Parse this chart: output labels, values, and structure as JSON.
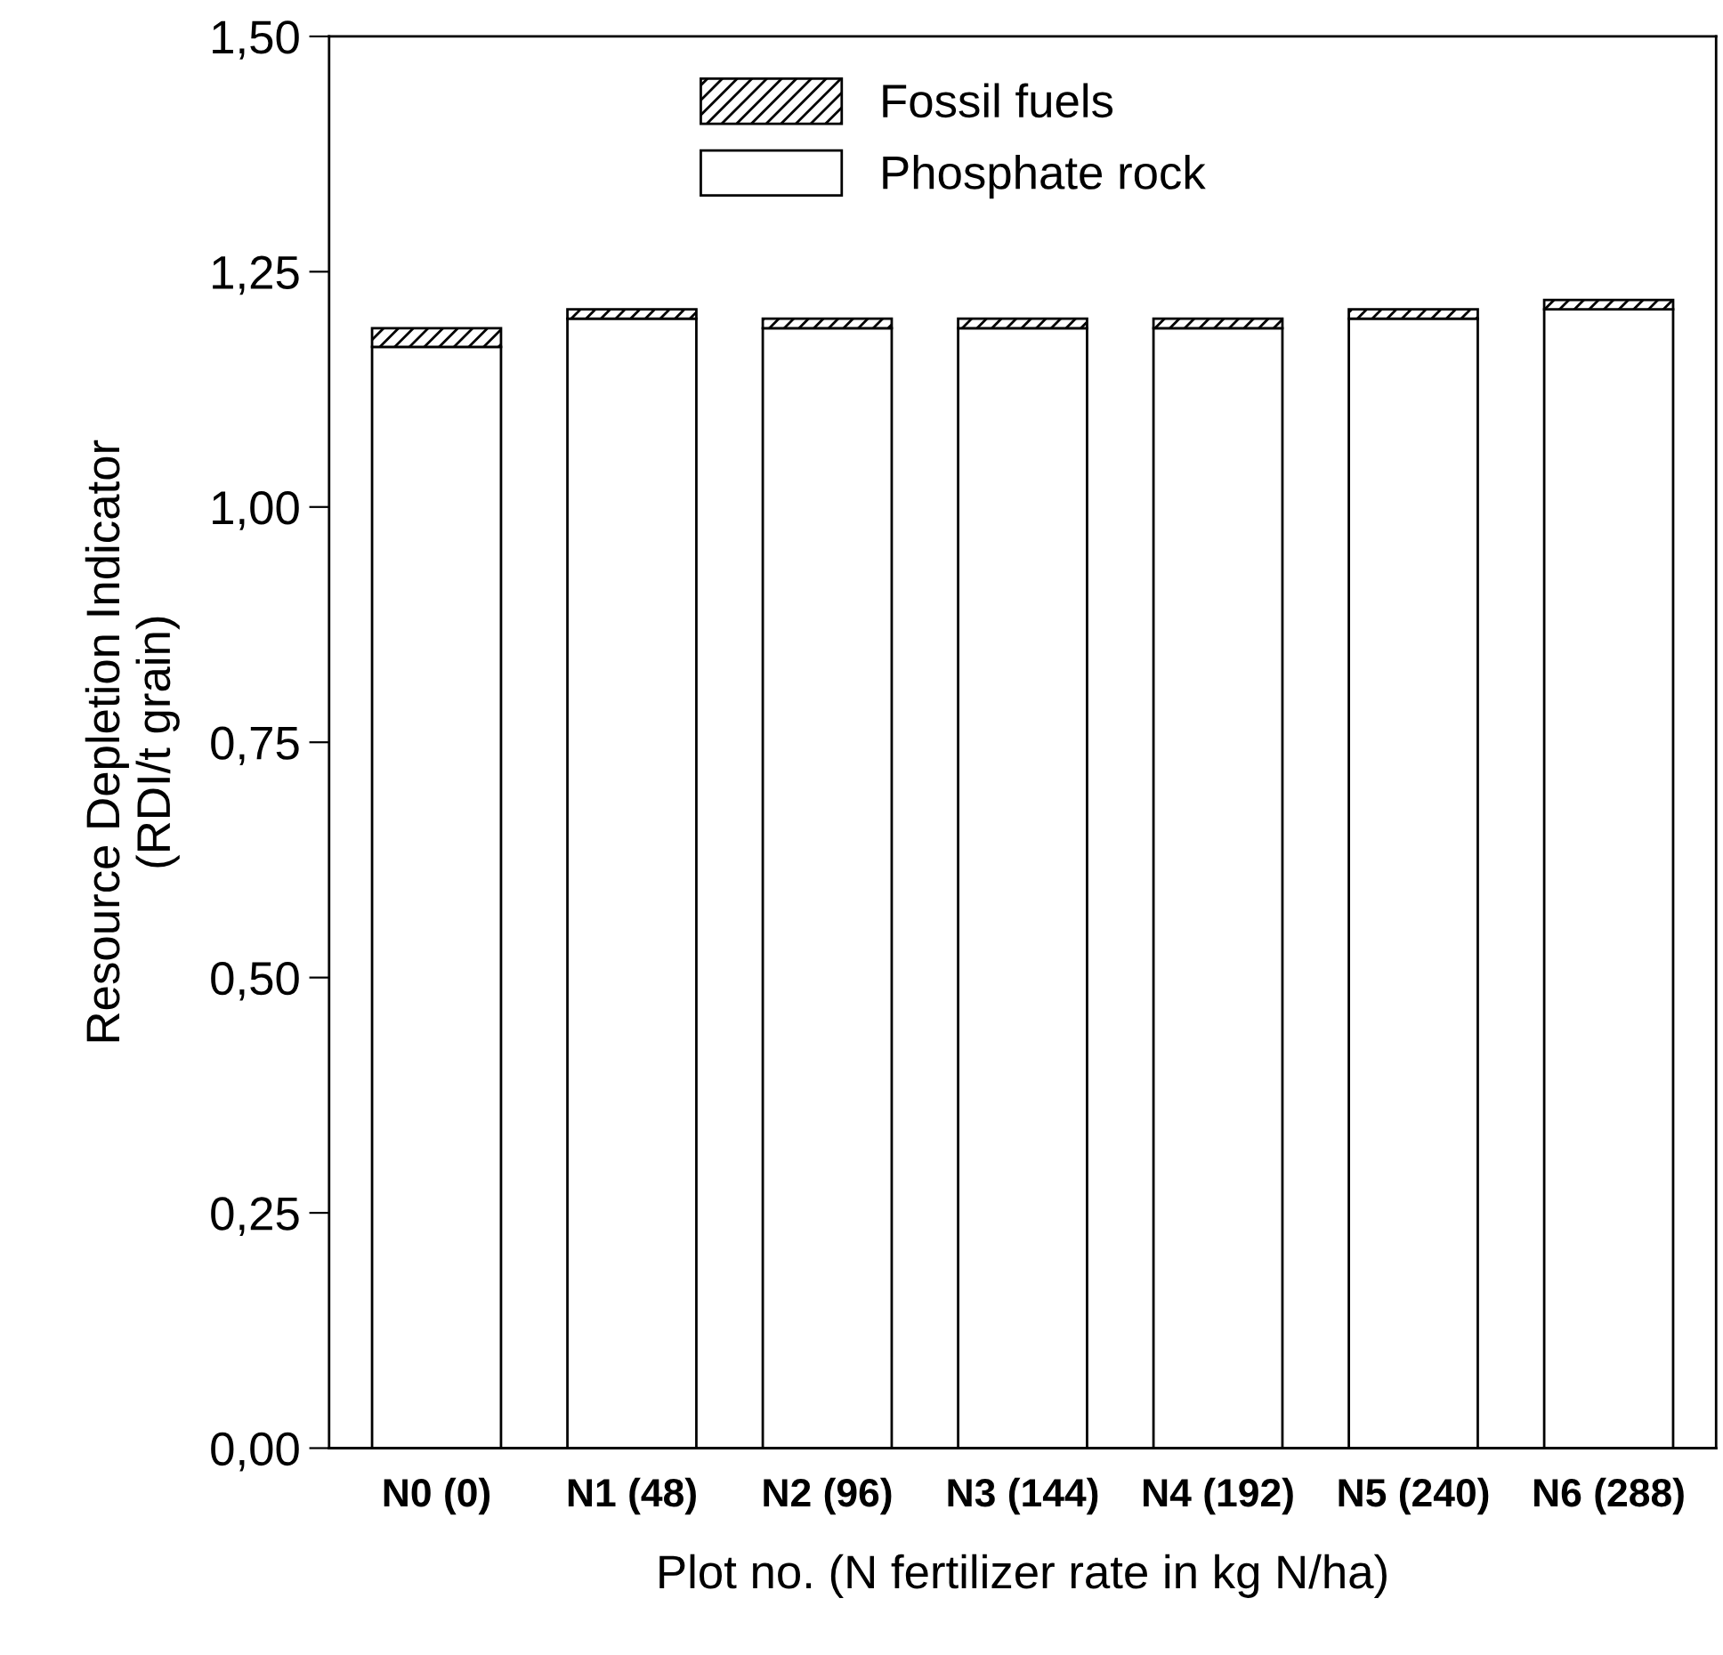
{
  "chart_data": {
    "type": "bar",
    "stacked": true,
    "xlabel": "Plot no. (N fertilizer rate in kg N/ha)",
    "ylabel": "Resource Depletion Indicator\n(RDI/t grain)",
    "categories": [
      "N0 (0)",
      "N1 (48)",
      "N2 (96)",
      "N3 (144)",
      "N4 (192)",
      "N5 (240)",
      "N6 (288)"
    ],
    "series": [
      {
        "name": "Phosphate rock",
        "color": "#ffffff",
        "values": [
          1.17,
          1.2,
          1.19,
          1.19,
          1.19,
          1.2,
          1.21
        ]
      },
      {
        "name": "Fossil fuels",
        "color": "#000000",
        "values": [
          0.02,
          0.01,
          0.01,
          0.01,
          0.01,
          0.01,
          0.01
        ]
      }
    ],
    "ylim": [
      0,
      1.5
    ],
    "yticks": [
      {
        "value": 0,
        "label": "0,00"
      },
      {
        "value": 0.25,
        "label": "0,25"
      },
      {
        "value": 0.5,
        "label": "0,50"
      },
      {
        "value": 0.75,
        "label": "0,75"
      },
      {
        "value": 1.0,
        "label": "1,00"
      },
      {
        "value": 1.25,
        "label": "1,25"
      },
      {
        "value": 1.5,
        "label": "1,50"
      }
    ],
    "grid": false,
    "legend": "top"
  }
}
